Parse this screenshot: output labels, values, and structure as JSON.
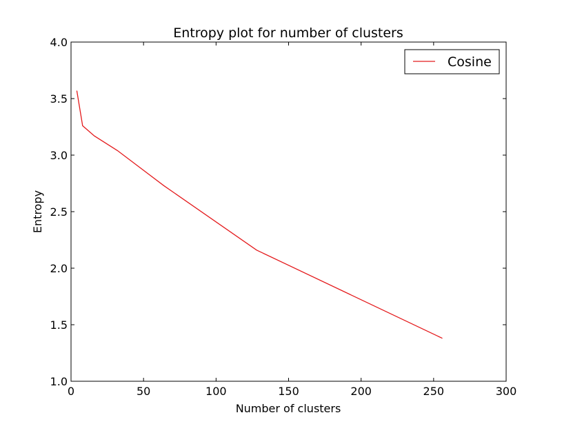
{
  "chart_data": {
    "type": "line",
    "title": "Entropy plot for number of clusters",
    "xlabel": "Number of clusters",
    "ylabel": "Entropy",
    "xlim": [
      0,
      300
    ],
    "ylim": [
      1.0,
      4.0
    ],
    "xticks": [
      0,
      50,
      100,
      150,
      200,
      250,
      300
    ],
    "yticks": [
      1.0,
      1.5,
      2.0,
      2.5,
      3.0,
      3.5,
      4.0
    ],
    "xtick_labels": [
      "0",
      "50",
      "100",
      "150",
      "200",
      "250",
      "300"
    ],
    "ytick_labels": [
      "1.0",
      "1.5",
      "2.0",
      "2.5",
      "3.0",
      "3.5",
      "4.0"
    ],
    "grid": false,
    "legend_position": "top-right",
    "series": [
      {
        "name": "Cosine",
        "color": "#e41a1c",
        "x": [
          4,
          8,
          16,
          32,
          64,
          128,
          256
        ],
        "y": [
          3.57,
          3.26,
          3.17,
          3.04,
          2.73,
          2.16,
          1.38
        ]
      }
    ]
  }
}
